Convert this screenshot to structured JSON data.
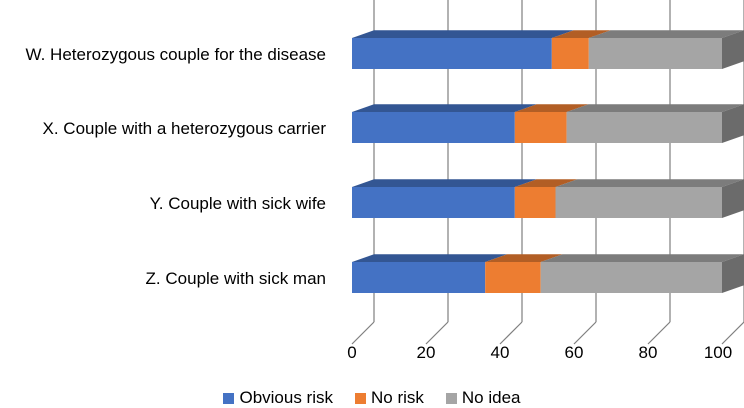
{
  "chart_data": {
    "type": "bar",
    "orientation": "horizontal",
    "stacked": true,
    "style": "3d",
    "categories": [
      "W. Heterozygous couple for the disease",
      "X. Couple with a heterozygous carrier",
      "Y. Couple with sick wife",
      "Z. Couple with sick man"
    ],
    "series": [
      {
        "name": "Obvious risk",
        "color": "#4472C4",
        "values": [
          54,
          44,
          44,
          36
        ]
      },
      {
        "name": "No risk",
        "color": "#ED7D31",
        "values": [
          10,
          14,
          11,
          15
        ]
      },
      {
        "name": "No idea",
        "color": "#A5A5A5",
        "values": [
          36,
          42,
          45,
          49
        ]
      }
    ],
    "xlim": [
      0,
      100
    ],
    "xticks": [
      "0",
      "20",
      "40",
      "60",
      "80",
      "100"
    ],
    "grid": true,
    "legend_position": "bottom",
    "title": "",
    "xlabel": "",
    "ylabel": ""
  }
}
